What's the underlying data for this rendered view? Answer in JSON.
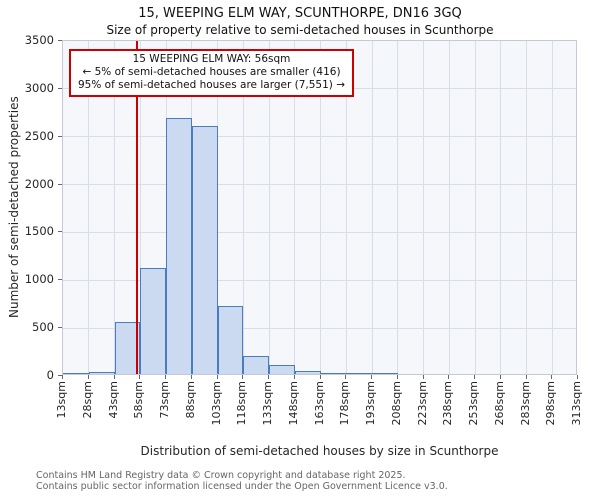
{
  "title": {
    "line1": "15, WEEPING ELM WAY, SCUNTHORPE, DN16 3GQ",
    "line2": "Size of property relative to semi-detached houses in Scunthorpe"
  },
  "chart_data": {
    "type": "bar",
    "title": "15, WEEPING ELM WAY, SCUNTHORPE, DN16 3GQ — Size of property relative to semi-detached houses in Scunthorpe",
    "xlabel": "Distribution of semi-detached houses by size in Scunthorpe",
    "ylabel": "Number of semi-detached properties",
    "xlim": [
      13,
      313
    ],
    "ylim": [
      0,
      3500
    ],
    "yticks": [
      0,
      500,
      1000,
      1500,
      2000,
      2500,
      3000,
      3500
    ],
    "bin_edges": [
      13,
      28,
      43,
      58,
      73,
      88,
      103,
      118,
      133,
      148,
      163,
      178,
      193,
      208,
      223,
      238,
      253,
      268,
      283,
      298,
      313
    ],
    "x_tick_labels": [
      "13sqm",
      "28sqm",
      "43sqm",
      "58sqm",
      "73sqm",
      "88sqm",
      "103sqm",
      "118sqm",
      "133sqm",
      "148sqm",
      "163sqm",
      "178sqm",
      "193sqm",
      "208sqm",
      "223sqm",
      "238sqm",
      "253sqm",
      "268sqm",
      "283sqm",
      "298sqm",
      "313sqm"
    ],
    "values": [
      5,
      20,
      540,
      1110,
      2670,
      2590,
      710,
      190,
      90,
      35,
      15,
      10,
      5,
      0,
      0,
      0,
      0,
      0,
      0,
      0
    ],
    "grid": true,
    "legend": false,
    "marker": {
      "x": 56,
      "color": "#cc0000"
    },
    "annotation": {
      "line1": "15 WEEPING ELM WAY: 56sqm",
      "line2": "← 5% of semi-detached houses are smaller (416)",
      "line3": "95% of semi-detached houses are larger (7,551) →"
    },
    "colors": {
      "bar_fill": "#ccdaf1",
      "bar_edge": "#4a7cc0",
      "grid": "#d8dee9",
      "plot_bg": "#f5f7fb",
      "marker": "#cc0000"
    }
  },
  "footer": {
    "line1": "Contains HM Land Registry data © Crown copyright and database right 2025.",
    "line2": "Contains public sector information licensed under the Open Government Licence v3.0."
  }
}
